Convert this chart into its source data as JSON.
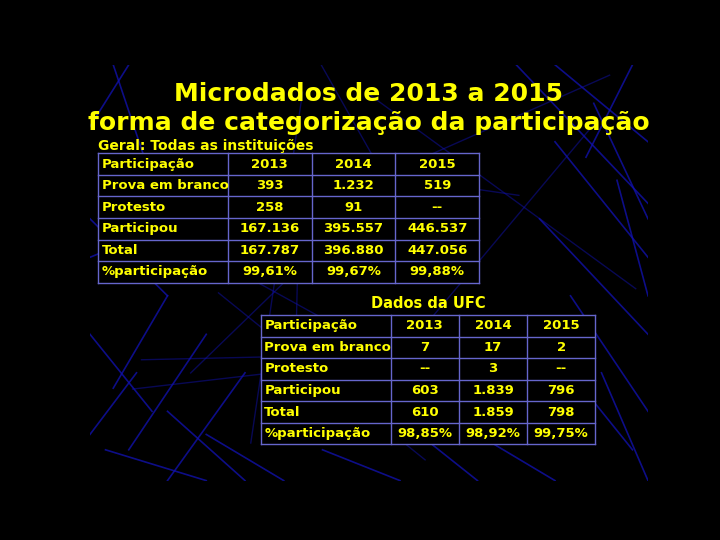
{
  "title_line1": "Microdados de 2013 a 2015",
  "title_line2": "forma de categorização da participação",
  "title_color": "#FFFF00",
  "background_color": "#000000",
  "table_bg_color": "#000000",
  "table_border_color": "#6666CC",
  "text_color": "#FFFF00",
  "subtitle1": "Geral: Todas as instituições",
  "subtitle2": "Dados da UFC",
  "table1_headers": [
    "Participação",
    "2013",
    "2014",
    "2015"
  ],
  "table1_rows": [
    [
      "Prova em branco",
      "393",
      "1.232",
      "519"
    ],
    [
      "Protesto",
      "258",
      "91",
      "--"
    ],
    [
      "Participou",
      "167.136",
      "395.557",
      "446.537"
    ],
    [
      "Total",
      "167.787",
      "396.880",
      "447.056"
    ],
    [
      "%participação",
      "99,61%",
      "99,67%",
      "99,88%"
    ]
  ],
  "table2_headers": [
    "Participação",
    "2013",
    "2014",
    "2015"
  ],
  "table2_rows": [
    [
      "Prova em branco",
      "7",
      "17",
      "2"
    ],
    [
      "Protesto",
      "--",
      "3",
      "--"
    ],
    [
      "Participou",
      "603",
      "1.839",
      "796"
    ],
    [
      "Total",
      "610",
      "1.859",
      "798"
    ],
    [
      "%participação",
      "98,85%",
      "98,92%",
      "99,75%"
    ]
  ],
  "deco_lines": [
    [
      [
        50,
        0
      ],
      [
        0,
        80
      ]
    ],
    [
      [
        30,
        0
      ],
      [
        80,
        150
      ]
    ],
    [
      [
        0,
        200
      ],
      [
        100,
        300
      ]
    ],
    [
      [
        0,
        350
      ],
      [
        80,
        450
      ]
    ],
    [
      [
        20,
        500
      ],
      [
        150,
        540
      ]
    ],
    [
      [
        60,
        400
      ],
      [
        0,
        480
      ]
    ],
    [
      [
        100,
        300
      ],
      [
        30,
        420
      ]
    ],
    [
      [
        150,
        350
      ],
      [
        50,
        500
      ]
    ],
    [
      [
        200,
        400
      ],
      [
        100,
        540
      ]
    ],
    [
      [
        0,
        250
      ],
      [
        120,
        200
      ]
    ],
    [
      [
        600,
        0
      ],
      [
        720,
        100
      ]
    ],
    [
      [
        650,
        50
      ],
      [
        720,
        200
      ]
    ],
    [
      [
        700,
        0
      ],
      [
        640,
        120
      ]
    ],
    [
      [
        680,
        150
      ],
      [
        720,
        300
      ]
    ],
    [
      [
        600,
        100
      ],
      [
        720,
        250
      ]
    ],
    [
      [
        550,
        0
      ],
      [
        720,
        180
      ]
    ],
    [
      [
        580,
        200
      ],
      [
        720,
        350
      ]
    ],
    [
      [
        620,
        300
      ],
      [
        720,
        450
      ]
    ],
    [
      [
        660,
        400
      ],
      [
        720,
        540
      ]
    ],
    [
      [
        580,
        350
      ],
      [
        700,
        500
      ]
    ],
    [
      [
        100,
        450
      ],
      [
        200,
        540
      ]
    ],
    [
      [
        150,
        480
      ],
      [
        250,
        540
      ]
    ],
    [
      [
        300,
        500
      ],
      [
        400,
        540
      ]
    ],
    [
      [
        400,
        460
      ],
      [
        500,
        540
      ]
    ],
    [
      [
        500,
        480
      ],
      [
        600,
        540
      ]
    ]
  ]
}
